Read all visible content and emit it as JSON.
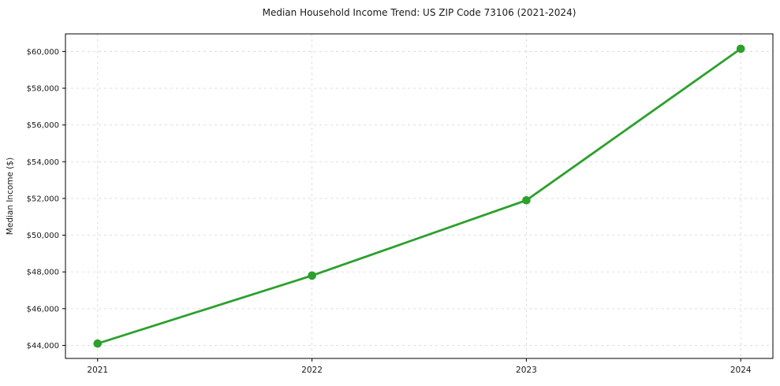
{
  "chart": {
    "title": "Median Household Income Trend: US ZIP Code 73106 (2021-2024)",
    "ylabel": "Median Income ($)"
  },
  "chart_data": {
    "type": "line",
    "title": "Median Household Income Trend: US ZIP Code 73106 (2021-2024)",
    "xlabel": "",
    "ylabel": "Median Income ($)",
    "x": [
      2021,
      2022,
      2023,
      2024
    ],
    "values": [
      44100,
      47800,
      51900,
      60150
    ],
    "xticks": [
      2021,
      2022,
      2023,
      2024
    ],
    "yticks": [
      44000,
      46000,
      48000,
      50000,
      52000,
      54000,
      56000,
      58000,
      60000
    ],
    "ytick_prefix": "$",
    "xlim": [
      2020.85,
      2024.15
    ],
    "ylim": [
      43290,
      60960
    ],
    "grid": true,
    "grid_style": "dashed",
    "legend_position": "none",
    "colors": {
      "line": "#2ca02c",
      "marker": "#2ca02c",
      "grid": "#d9d9d9",
      "spine": "#000000",
      "tick_text": "#1a1a1a",
      "background": "#ffffff"
    },
    "marker": "circle",
    "marker_radius": 5.3,
    "line_width": 2.8
  }
}
